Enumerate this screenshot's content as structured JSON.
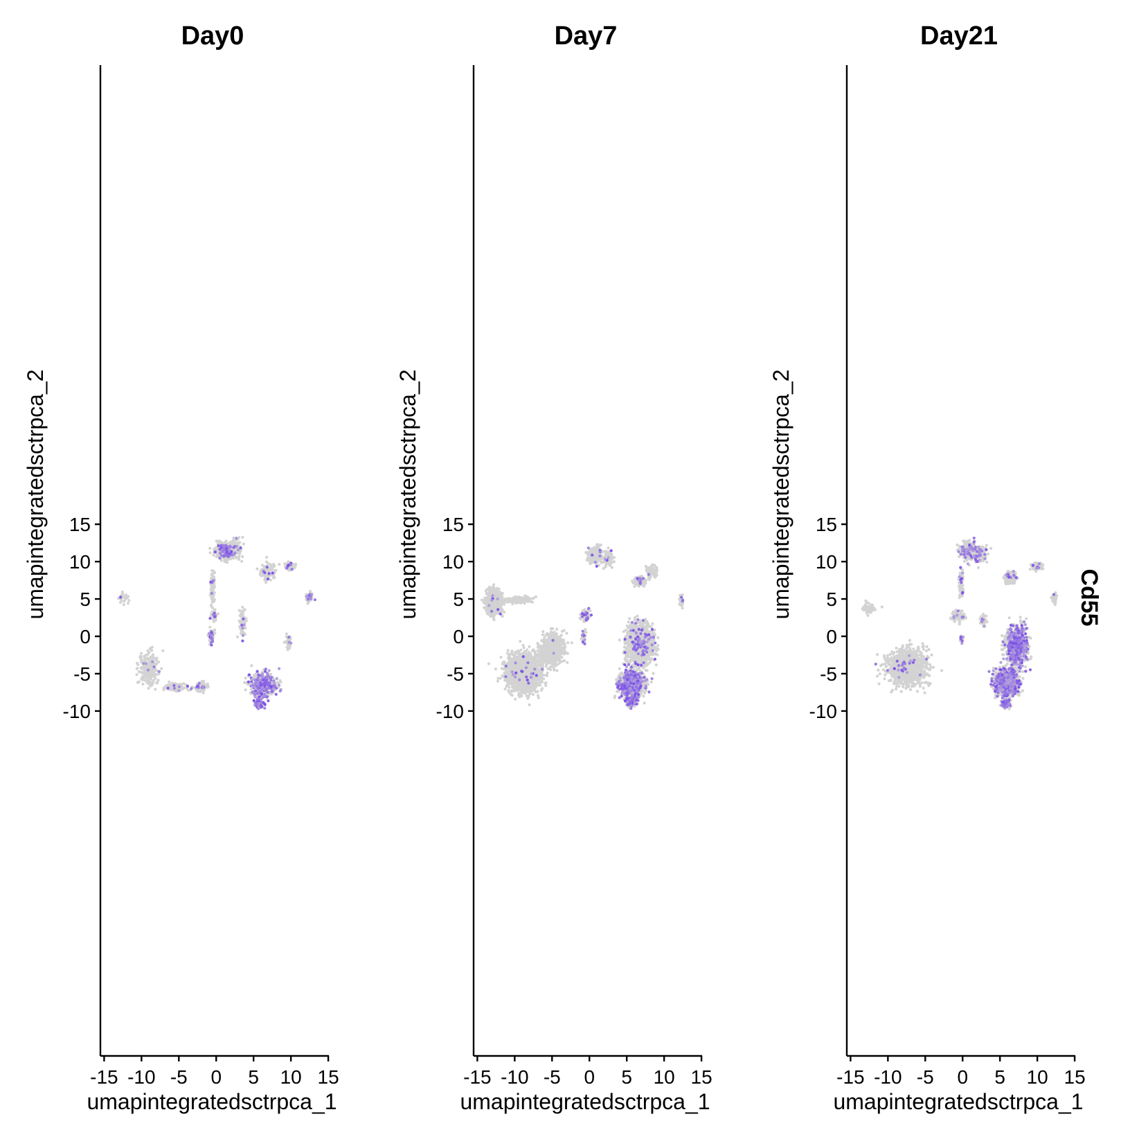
{
  "chart_data": {
    "type": "scatter",
    "feature": "Cd55",
    "xlabel": "umapintegratedsctrpca_1",
    "ylabel": "umapintegratedsctrpca_2",
    "xlim": [
      -15.5,
      15
    ],
    "ylim": [
      -11.2,
      15.2
    ],
    "xticks": [
      -15,
      -10,
      -5,
      0,
      5,
      10,
      15
    ],
    "yticks": [
      -10,
      -5,
      0,
      5,
      10,
      15
    ],
    "colors": {
      "low": "#d3d3d3",
      "high": "#7b4fe8"
    },
    "panels": [
      {
        "title": "Day0",
        "clusters": [
          {
            "cx": 1.2,
            "cy": 11.4,
            "sx": 1.1,
            "sy": 0.9,
            "n": 520,
            "expr": 0.08
          },
          {
            "cx": 2.6,
            "cy": 11.8,
            "sx": 0.9,
            "sy": 1.1,
            "n": 120,
            "expr": 0.12
          },
          {
            "cx": 9.8,
            "cy": 9.4,
            "sx": 0.5,
            "sy": 0.4,
            "n": 140,
            "expr": 0.05
          },
          {
            "cx": 7.0,
            "cy": 8.6,
            "sx": 1.0,
            "sy": 1.0,
            "n": 110,
            "expr": 0.08
          },
          {
            "cx": -0.5,
            "cy": 6.5,
            "sx": 0.25,
            "sy": 2.2,
            "n": 110,
            "expr": 0.05
          },
          {
            "cx": -12.5,
            "cy": 5.2,
            "sx": 0.7,
            "sy": 0.7,
            "n": 25,
            "expr": 0.05
          },
          {
            "cx": 12.5,
            "cy": 5.2,
            "sx": 0.4,
            "sy": 0.5,
            "n": 50,
            "expr": 0.2
          },
          {
            "cx": -0.3,
            "cy": 2.7,
            "sx": 0.35,
            "sy": 0.7,
            "n": 60,
            "expr": 0.1
          },
          {
            "cx": 3.5,
            "cy": 2.0,
            "sx": 0.4,
            "sy": 1.6,
            "n": 90,
            "expr": 0.05
          },
          {
            "cx": -0.6,
            "cy": 0.0,
            "sx": 0.3,
            "sy": 0.8,
            "n": 60,
            "expr": 0.35
          },
          {
            "cx": 9.7,
            "cy": -0.8,
            "sx": 0.35,
            "sy": 0.9,
            "n": 50,
            "expr": 0.05
          },
          {
            "cx": -9.0,
            "cy": -4.5,
            "sx": 1.2,
            "sy": 2.0,
            "n": 220,
            "expr": 0.04
          },
          {
            "cx": -5.5,
            "cy": -6.8,
            "sx": 1.2,
            "sy": 0.5,
            "n": 170,
            "expr": 0.04
          },
          {
            "cx": -2.0,
            "cy": -6.8,
            "sx": 0.7,
            "sy": 0.6,
            "n": 140,
            "expr": 0.08
          },
          {
            "cx": 6.2,
            "cy": -6.5,
            "sx": 1.6,
            "sy": 1.6,
            "n": 420,
            "expr": 0.4
          },
          {
            "cx": 5.8,
            "cy": -9.0,
            "sx": 0.45,
            "sy": 0.5,
            "n": 90,
            "expr": 0.7
          }
        ]
      },
      {
        "title": "Day7",
        "clusters": [
          {
            "cx": 0.8,
            "cy": 11.0,
            "sx": 1.0,
            "sy": 1.0,
            "n": 180,
            "expr": 0.05
          },
          {
            "cx": 2.5,
            "cy": 10.5,
            "sx": 0.6,
            "sy": 0.9,
            "n": 90,
            "expr": 0.1
          },
          {
            "cx": 6.7,
            "cy": 7.4,
            "sx": 0.6,
            "sy": 0.5,
            "n": 260,
            "expr": 0.03
          },
          {
            "cx": 8.4,
            "cy": 8.6,
            "sx": 0.6,
            "sy": 0.7,
            "n": 80,
            "expr": 0.03
          },
          {
            "cx": 12.3,
            "cy": 4.7,
            "sx": 0.25,
            "sy": 0.7,
            "n": 30,
            "expr": 0.05
          },
          {
            "cx": -12.8,
            "cy": 4.6,
            "sx": 0.8,
            "sy": 1.3,
            "n": 1300,
            "expr": 0.01
          },
          {
            "cx": -9.5,
            "cy": 4.9,
            "sx": 1.3,
            "sy": 0.4,
            "n": 160,
            "expr": 0.01
          },
          {
            "cx": -0.5,
            "cy": 2.8,
            "sx": 0.7,
            "sy": 0.7,
            "n": 70,
            "expr": 0.12
          },
          {
            "cx": -0.8,
            "cy": -0.2,
            "sx": 0.2,
            "sy": 0.8,
            "n": 45,
            "expr": 0.3
          },
          {
            "cx": -8.8,
            "cy": -4.8,
            "sx": 2.0,
            "sy": 2.1,
            "n": 2200,
            "expr": 0.01
          },
          {
            "cx": -5.0,
            "cy": -1.8,
            "sx": 1.3,
            "sy": 1.8,
            "n": 700,
            "expr": 0.01
          },
          {
            "cx": 6.8,
            "cy": -1.0,
            "sx": 1.5,
            "sy": 2.3,
            "n": 1500,
            "expr": 0.05
          },
          {
            "cx": 5.6,
            "cy": -6.3,
            "sx": 1.4,
            "sy": 1.5,
            "n": 1200,
            "expr": 0.25
          },
          {
            "cx": 5.6,
            "cy": -8.7,
            "sx": 0.6,
            "sy": 0.6,
            "n": 200,
            "expr": 0.45
          }
        ]
      },
      {
        "title": "Day21",
        "clusters": [
          {
            "cx": 0.8,
            "cy": 11.4,
            "sx": 1.0,
            "sy": 1.0,
            "n": 420,
            "expr": 0.1
          },
          {
            "cx": 2.4,
            "cy": 11.0,
            "sx": 0.8,
            "sy": 1.0,
            "n": 160,
            "expr": 0.18
          },
          {
            "cx": 10.0,
            "cy": 9.4,
            "sx": 0.5,
            "sy": 0.4,
            "n": 140,
            "expr": 0.04
          },
          {
            "cx": 6.4,
            "cy": 7.8,
            "sx": 0.7,
            "sy": 0.7,
            "n": 280,
            "expr": 0.04
          },
          {
            "cx": -0.2,
            "cy": 7.0,
            "sx": 0.25,
            "sy": 1.7,
            "n": 90,
            "expr": 0.1
          },
          {
            "cx": 12.3,
            "cy": 5.0,
            "sx": 0.3,
            "sy": 0.6,
            "n": 60,
            "expr": 0.05
          },
          {
            "cx": -12.5,
            "cy": 3.8,
            "sx": 0.8,
            "sy": 0.8,
            "n": 55,
            "expr": 0.03
          },
          {
            "cx": -0.6,
            "cy": 2.7,
            "sx": 0.8,
            "sy": 0.7,
            "n": 90,
            "expr": 0.12
          },
          {
            "cx": 2.8,
            "cy": 2.0,
            "sx": 0.35,
            "sy": 0.8,
            "n": 50,
            "expr": 0.1
          },
          {
            "cx": -0.1,
            "cy": -0.3,
            "sx": 0.2,
            "sy": 0.5,
            "n": 25,
            "expr": 0.3
          },
          {
            "cx": -7.5,
            "cy": -4.2,
            "sx": 2.3,
            "sy": 2.3,
            "n": 950,
            "expr": 0.02
          },
          {
            "cx": 7.2,
            "cy": -1.2,
            "sx": 1.2,
            "sy": 2.2,
            "n": 1100,
            "expr": 0.3
          },
          {
            "cx": 5.9,
            "cy": -6.2,
            "sx": 1.4,
            "sy": 1.6,
            "n": 1100,
            "expr": 0.35
          },
          {
            "cx": 5.8,
            "cy": -9.0,
            "sx": 0.5,
            "sy": 0.5,
            "n": 160,
            "expr": 0.55
          }
        ]
      }
    ]
  }
}
